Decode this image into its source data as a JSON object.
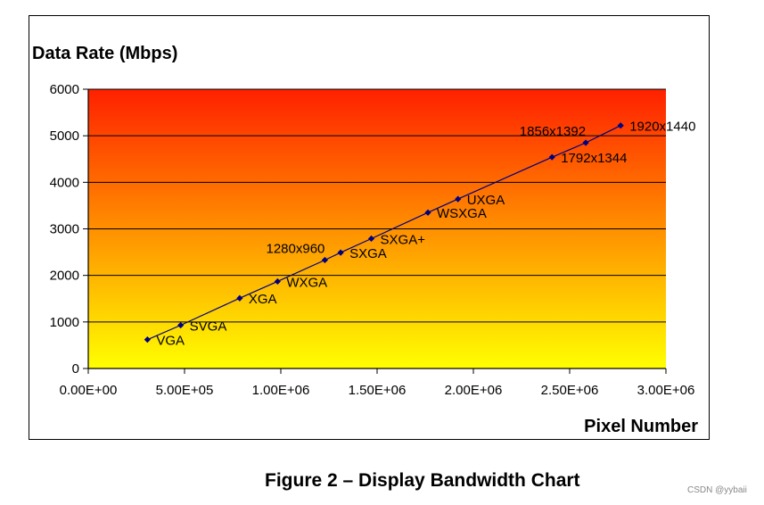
{
  "chart_data": {
    "type": "scatter",
    "title": "",
    "ylabel": "Data Rate (Mbps)",
    "xlabel": "Pixel Number",
    "xlim": [
      0,
      3000000
    ],
    "ylim": [
      0,
      6000
    ],
    "x_ticks": [
      0,
      500000,
      1000000,
      1500000,
      2000000,
      2500000,
      3000000
    ],
    "x_tick_labels": [
      "0.00E+00",
      "5.00E+05",
      "1.00E+06",
      "1.50E+06",
      "2.00E+06",
      "2.50E+06",
      "3.00E+06"
    ],
    "y_ticks": [
      0,
      1000,
      2000,
      3000,
      4000,
      5000,
      6000
    ],
    "y_tick_labels": [
      "0",
      "1000",
      "2000",
      "3000",
      "4000",
      "5000",
      "6000"
    ],
    "grid": "horizontal",
    "legend": "none",
    "background_gradient": [
      "#ff2000",
      "#ffff00"
    ],
    "line_color": "#000080",
    "marker_color": "#000080",
    "points": [
      {
        "label": "VGA",
        "x": 307200,
        "y": 620,
        "label_pos": "right"
      },
      {
        "label": "SVGA",
        "x": 480000,
        "y": 930,
        "label_pos": "right"
      },
      {
        "label": "XGA",
        "x": 786432,
        "y": 1510,
        "label_pos": "right"
      },
      {
        "label": "WXGA",
        "x": 983040,
        "y": 1870,
        "label_pos": "right"
      },
      {
        "label": "1280x960",
        "x": 1228800,
        "y": 2330,
        "label_pos": "above-left"
      },
      {
        "label": "SXGA",
        "x": 1310720,
        "y": 2490,
        "label_pos": "right"
      },
      {
        "label": "SXGA+",
        "x": 1470000,
        "y": 2790,
        "label_pos": "right"
      },
      {
        "label": "WSXGA",
        "x": 1764000,
        "y": 3350,
        "label_pos": "right"
      },
      {
        "label": "UXGA",
        "x": 1920000,
        "y": 3640,
        "label_pos": "right"
      },
      {
        "label": "1792x1344",
        "x": 2408448,
        "y": 4540,
        "label_pos": "right"
      },
      {
        "label": "1856x1392",
        "x": 2583552,
        "y": 4850,
        "label_pos": "above-left"
      },
      {
        "label": "1920x1440",
        "x": 2764800,
        "y": 5220,
        "label_pos": "right"
      }
    ]
  },
  "caption": "Figure 2 – Display Bandwidth Chart",
  "watermark": "CSDN @yybaii"
}
